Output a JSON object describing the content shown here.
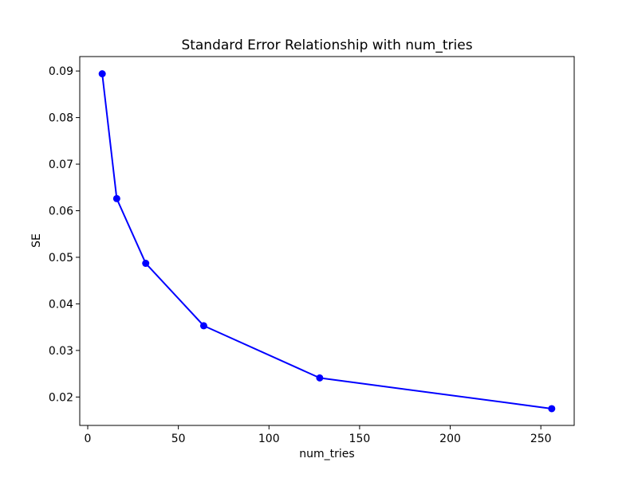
{
  "figure": {
    "background": "#ffffff"
  },
  "chart_data": {
    "type": "line",
    "title": "Standard Error Relationship with num_tries",
    "xlabel": "num_tries",
    "ylabel": "SE",
    "x": [
      8,
      16,
      32,
      64,
      128,
      256
    ],
    "y": [
      0.0894,
      0.0626,
      0.0487,
      0.0353,
      0.0241,
      0.0175
    ],
    "series": [
      {
        "name": "SE",
        "x": [
          8,
          16,
          32,
          64,
          128,
          256
        ],
        "values": [
          0.0894,
          0.0626,
          0.0487,
          0.0353,
          0.0241,
          0.0175
        ]
      }
    ],
    "xlim": [
      -4.4,
      268.4
    ],
    "ylim": [
      0.0139,
      0.0931
    ],
    "xticks": [
      0,
      50,
      100,
      150,
      200,
      250
    ],
    "yticks": [
      0.02,
      0.03,
      0.04,
      0.05,
      0.06,
      0.07,
      0.08,
      0.09
    ],
    "ytick_decimals": 2,
    "line_color": "#0000ff",
    "axis_color": "#000000",
    "marker": "o",
    "grid": false,
    "legend_position": "none"
  }
}
